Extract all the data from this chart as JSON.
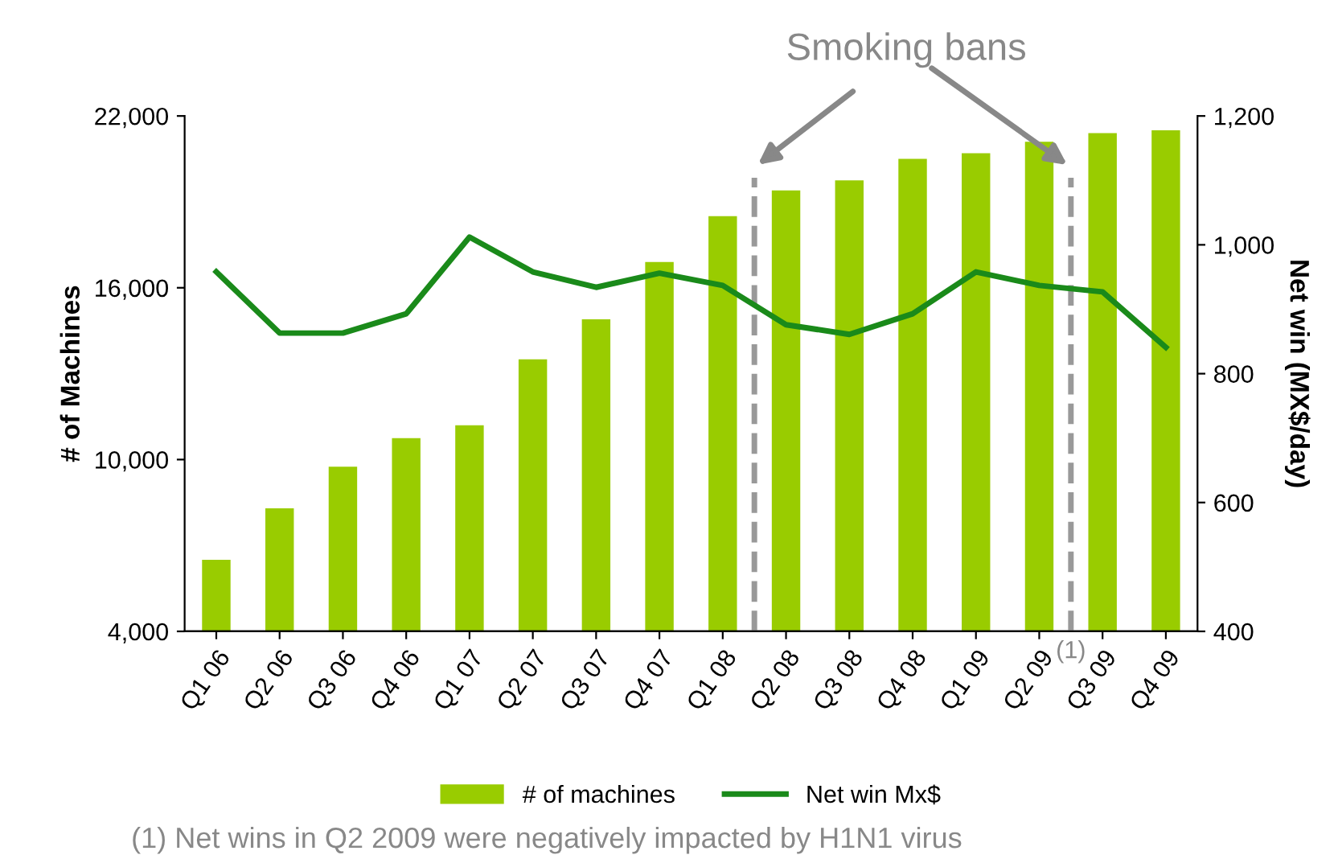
{
  "chart_data": {
    "type": "bar",
    "categories": [
      "Q1 06",
      "Q2 06",
      "Q3 06",
      "Q4 06",
      "Q1 07",
      "Q2 07",
      "Q3 07",
      "Q4 07",
      "Q1 08",
      "Q2 08",
      "Q3 08",
      "Q4 08",
      "Q1 09",
      "Q2 09",
      "Q3 09",
      "Q4 09"
    ],
    "series": [
      {
        "name": "# of machines",
        "color": "#99cc00",
        "values": [
          6500,
          8300,
          9750,
          10750,
          11200,
          13500,
          14900,
          16900,
          18500,
          19400,
          19750,
          20500,
          20700,
          21100,
          21400,
          21500
        ]
      },
      {
        "name": "Net win Mx$",
        "type": "line",
        "axis": "y2",
        "color": "#1a8a1a",
        "values": [
          958,
          863,
          863,
          893,
          1012,
          958,
          934,
          956,
          937,
          876,
          861,
          893,
          958,
          937,
          927,
          841
        ]
      }
    ],
    "ylabel": "# of Machines",
    "y2label": "Net win (MX$/day)",
    "ylim": [
      4000,
      22000
    ],
    "yticks": [
      {
        "value": 4000,
        "label": "4,000"
      },
      {
        "value": 10000,
        "label": "10,000"
      },
      {
        "value": 16000,
        "label": "16,000"
      },
      {
        "value": 22000,
        "label": "22,000"
      }
    ],
    "y2lim": [
      400,
      1200
    ],
    "y2ticks": [
      400,
      600,
      800,
      {
        "value": 1000,
        "label": "1,000"
      },
      {
        "value": 1200,
        "label": "1,200"
      }
    ],
    "annotations": [
      "Smoking bans",
      "(1)",
      "(1) Net wins in Q2 2009 were negatively impacted by H1N1 virus"
    ],
    "legend": "bottom",
    "grid": false
  }
}
